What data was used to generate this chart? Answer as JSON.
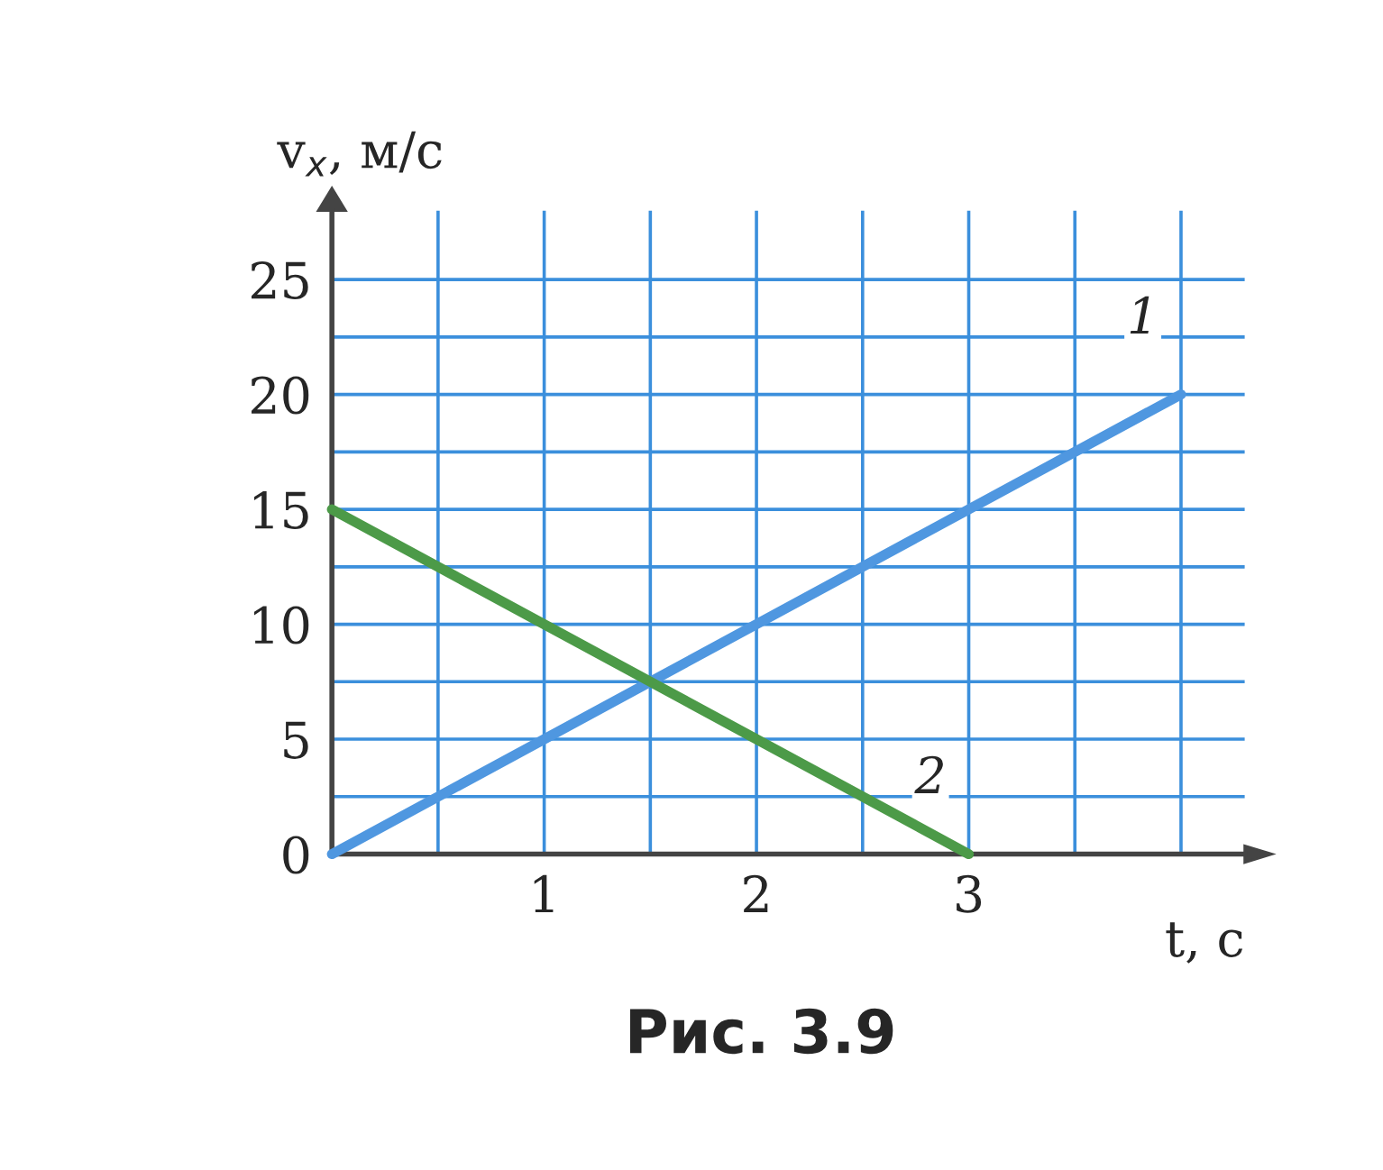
{
  "chart_data": {
    "type": "line",
    "xlabel": "t, с",
    "ylabel": "v$_{x}$, м/с",
    "series": [
      {
        "name": "1",
        "color": "#4f97e0",
        "x": [
          0,
          4
        ],
        "values": [
          0,
          20
        ]
      },
      {
        "name": "2",
        "color": "#4c9a48",
        "x": [
          0,
          3
        ],
        "values": [
          15,
          0
        ]
      }
    ],
    "xlim": [
      0,
      4.3
    ],
    "ylim": [
      0,
      28
    ],
    "xticks": [
      {
        "value": 0,
        "label": null
      },
      {
        "value": 0.5,
        "label": null
      },
      1,
      {
        "value": 1.5,
        "label": null
      },
      2,
      {
        "value": 2.5,
        "label": null
      },
      3,
      {
        "value": 3.5,
        "label": null
      },
      {
        "value": 4,
        "label": null
      }
    ],
    "yticks": [
      0,
      {
        "value": 2.5,
        "label": null
      },
      5,
      {
        "value": 7.5,
        "label": null
      },
      10,
      {
        "value": 12.5,
        "label": null
      },
      15,
      {
        "value": 17.5,
        "label": null
      },
      20,
      {
        "value": 22.5,
        "label": null
      },
      25
    ],
    "grid": true,
    "marker": "none",
    "line_style": "solid",
    "annotations": [
      "Рис. 3.9"
    ]
  }
}
